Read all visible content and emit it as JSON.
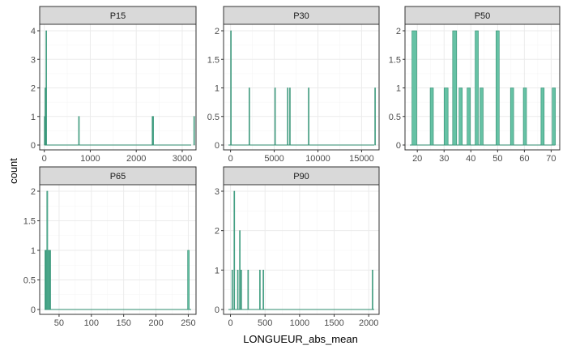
{
  "chart_data": {
    "type": "histogram",
    "xlabel": "LONGUEUR_abs_mean",
    "ylabel": "count",
    "fill_color": "#66c2a5",
    "panels": [
      {
        "name": "P15",
        "xlim": [
          -100,
          3300
        ],
        "ylim": [
          0,
          4
        ],
        "xticks": [
          0,
          1000,
          2000,
          3000
        ],
        "yticks": [
          0,
          1,
          2,
          3,
          4
        ],
        "bins": [
          {
            "x0": 0,
            "x1": 15,
            "count": 1
          },
          {
            "x0": 15,
            "x1": 30,
            "count": 2
          },
          {
            "x0": 35,
            "x1": 50,
            "count": 4
          },
          {
            "x0": 745,
            "x1": 760,
            "count": 1
          },
          {
            "x0": 2345,
            "x1": 2360,
            "count": 1
          },
          {
            "x0": 2360,
            "x1": 2375,
            "count": 1
          },
          {
            "x0": 3250,
            "x1": 3265,
            "count": 1
          }
        ]
      },
      {
        "name": "P30",
        "xlim": [
          -800,
          17000
        ],
        "ylim": [
          0,
          2
        ],
        "xticks": [
          0,
          5000,
          10000,
          15000
        ],
        "yticks": [
          0.0,
          0.5,
          1.0,
          1.5,
          2.0
        ],
        "bins": [
          {
            "x0": 0,
            "x1": 50,
            "count": 2
          },
          {
            "x0": 2100,
            "x1": 2150,
            "count": 1
          },
          {
            "x0": 5050,
            "x1": 5100,
            "count": 1
          },
          {
            "x0": 6500,
            "x1": 6550,
            "count": 1
          },
          {
            "x0": 6750,
            "x1": 6800,
            "count": 1
          },
          {
            "x0": 8900,
            "x1": 8950,
            "count": 1
          },
          {
            "x0": 16500,
            "x1": 16550,
            "count": 1
          }
        ]
      },
      {
        "name": "P50",
        "xlim": [
          15.4,
          73.2
        ],
        "ylim": [
          0,
          2
        ],
        "xticks": [
          20,
          30,
          40,
          50,
          60,
          70
        ],
        "yticks": [
          0.0,
          0.5,
          1.0,
          1.5,
          2.0
        ],
        "bins": [
          {
            "x0": 18.0,
            "x1": 19.8,
            "count": 2
          },
          {
            "x0": 24.8,
            "x1": 26.0,
            "count": 1
          },
          {
            "x0": 30.0,
            "x1": 31.5,
            "count": 1
          },
          {
            "x0": 33.2,
            "x1": 34.7,
            "count": 2
          },
          {
            "x0": 35.6,
            "x1": 36.8,
            "count": 1
          },
          {
            "x0": 38.6,
            "x1": 39.8,
            "count": 1
          },
          {
            "x0": 41.6,
            "x1": 42.8,
            "count": 2
          },
          {
            "x0": 43.4,
            "x1": 44.6,
            "count": 1
          },
          {
            "x0": 49.4,
            "x1": 50.6,
            "count": 2
          },
          {
            "x0": 54.8,
            "x1": 56.0,
            "count": 1
          },
          {
            "x0": 59.6,
            "x1": 60.8,
            "count": 1
          },
          {
            "x0": 66.2,
            "x1": 67.4,
            "count": 1
          },
          {
            "x0": 70.4,
            "x1": 71.6,
            "count": 1
          }
        ]
      },
      {
        "name": "P65",
        "xlim": [
          20,
          262
        ],
        "ylim": [
          0,
          2
        ],
        "xticks": [
          50,
          100,
          150,
          200,
          250
        ],
        "yticks": [
          0.0,
          0.5,
          1.0,
          1.5,
          2.0
        ],
        "bins": [
          {
            "x0": 28.0,
            "x1": 29.5,
            "count": 1
          },
          {
            "x0": 29.5,
            "x1": 31.0,
            "count": 1
          },
          {
            "x0": 31.0,
            "x1": 32.5,
            "count": 2
          },
          {
            "x0": 32.5,
            "x1": 34.0,
            "count": 1
          },
          {
            "x0": 34.0,
            "x1": 35.5,
            "count": 1
          },
          {
            "x0": 35.5,
            "x1": 37.0,
            "count": 1
          },
          {
            "x0": 249.0,
            "x1": 251.5,
            "count": 1
          }
        ]
      },
      {
        "name": "P90",
        "xlim": [
          -100,
          2150
        ],
        "ylim": [
          0,
          3
        ],
        "xticks": [
          0,
          500,
          1000,
          1500,
          2000
        ],
        "yticks": [
          0,
          1,
          2,
          3
        ],
        "bins": [
          {
            "x0": 20,
            "x1": 30,
            "count": 1
          },
          {
            "x0": 50,
            "x1": 60,
            "count": 3
          },
          {
            "x0": 100,
            "x1": 110,
            "count": 1
          },
          {
            "x0": 130,
            "x1": 140,
            "count": 2
          },
          {
            "x0": 150,
            "x1": 160,
            "count": 1
          },
          {
            "x0": 250,
            "x1": 260,
            "count": 1
          },
          {
            "x0": 420,
            "x1": 430,
            "count": 1
          },
          {
            "x0": 470,
            "x1": 480,
            "count": 1
          },
          {
            "x0": 2050,
            "x1": 2060,
            "count": 1
          }
        ]
      }
    ]
  }
}
